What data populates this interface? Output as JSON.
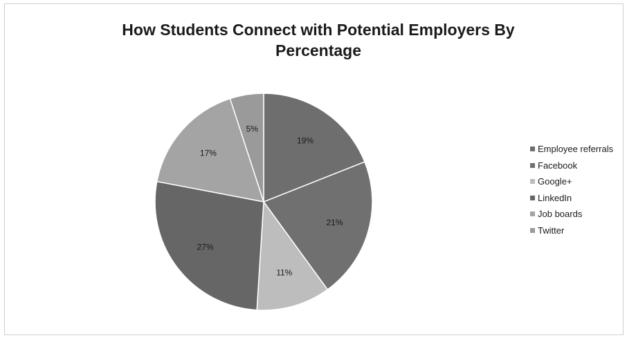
{
  "chart_data": {
    "type": "pie",
    "title_lines": [
      "How Students Connect with Potential Employers By",
      "Percentage"
    ],
    "slices": [
      {
        "name": "Employee referrals",
        "value": 19,
        "label": "19%",
        "color": "#6e6e6e"
      },
      {
        "name": "Facebook",
        "value": 21,
        "label": "21%",
        "color": "#707070"
      },
      {
        "name": "Google+",
        "value": 11,
        "label": "11%",
        "color": "#bdbdbd"
      },
      {
        "name": "LinkedIn",
        "value": 27,
        "label": "27%",
        "color": "#666666"
      },
      {
        "name": "Job boards",
        "value": 17,
        "label": "17%",
        "color": "#a4a4a4"
      },
      {
        "name": "Twitter",
        "value": 5,
        "label": "5%",
        "color": "#9a9a9a"
      }
    ],
    "legend_position": "right"
  }
}
